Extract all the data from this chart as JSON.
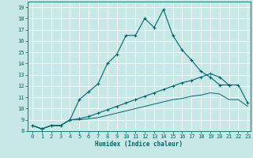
{
  "title": "",
  "xlabel": "Humidex (Indice chaleur)",
  "ylabel": "",
  "background_color": "#c8e8e8",
  "line_color": "#006666",
  "xlim": [
    -0.5,
    23.3
  ],
  "ylim": [
    8,
    19.5
  ],
  "xticks": [
    0,
    1,
    2,
    3,
    4,
    5,
    6,
    7,
    8,
    9,
    10,
    11,
    12,
    13,
    14,
    15,
    16,
    17,
    18,
    19,
    20,
    21,
    22,
    23
  ],
  "yticks": [
    8,
    9,
    10,
    11,
    12,
    13,
    14,
    15,
    16,
    17,
    18,
    19
  ],
  "line1_x": [
    0,
    1,
    2,
    3,
    4,
    5,
    6,
    7,
    8,
    9,
    10,
    11,
    12,
    13,
    14,
    15,
    16,
    17,
    18,
    19,
    20,
    21
  ],
  "line1_y": [
    8.5,
    8.2,
    8.5,
    8.5,
    9.0,
    10.8,
    11.5,
    12.2,
    14.0,
    14.8,
    16.5,
    16.5,
    18.0,
    17.2,
    18.8,
    16.5,
    15.2,
    14.3,
    13.3,
    12.8,
    12.1,
    12.1
  ],
  "line2_x": [
    0,
    1,
    2,
    3,
    4,
    5,
    6,
    7,
    8,
    9,
    10,
    11,
    12,
    13,
    14,
    15,
    16,
    17,
    18,
    19,
    20,
    21,
    22,
    23
  ],
  "line2_y": [
    8.5,
    8.2,
    8.5,
    8.5,
    9.0,
    9.1,
    9.3,
    9.6,
    9.9,
    10.2,
    10.5,
    10.8,
    11.1,
    11.4,
    11.7,
    12.0,
    12.3,
    12.5,
    12.8,
    13.1,
    12.8,
    12.1,
    12.1,
    10.5
  ],
  "line3_x": [
    0,
    1,
    2,
    3,
    4,
    5,
    6,
    7,
    8,
    9,
    10,
    11,
    12,
    13,
    14,
    15,
    16,
    17,
    18,
    19,
    20,
    21,
    22,
    23
  ],
  "line3_y": [
    8.5,
    8.2,
    8.5,
    8.5,
    9.0,
    9.0,
    9.1,
    9.2,
    9.4,
    9.6,
    9.8,
    10.0,
    10.2,
    10.4,
    10.6,
    10.8,
    10.9,
    11.1,
    11.2,
    11.4,
    11.3,
    10.8,
    10.8,
    10.2
  ]
}
